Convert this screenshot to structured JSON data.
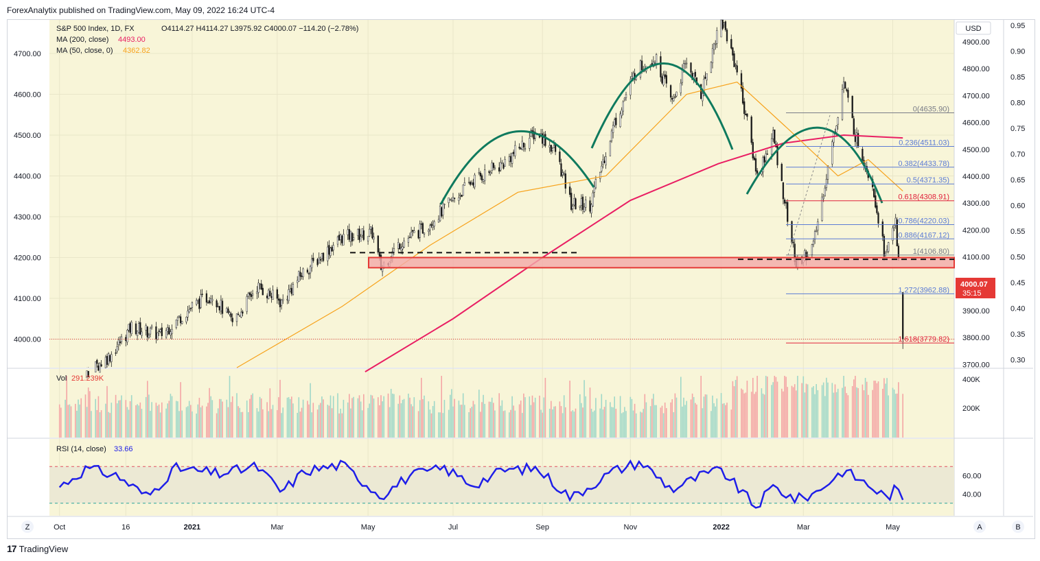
{
  "header": {
    "published": "ForexAnalytix published on TradingView.com, May 09, 2022 16:24 UTC-4"
  },
  "footer": {
    "brand": "TradingView",
    "logo": "17"
  },
  "legend": {
    "symbol": "S&P 500 Index, 1D, FX",
    "ohlc": "O4114.27  H4114.27  L3975.92  C4000.07  −114.20 (−2.78%)",
    "ma200_label": "MA (200, close)",
    "ma200_value": "4493.00",
    "ma50_label": "MA (50, close, 0)",
    "ma50_value": "4362.82",
    "vol_label": "Vol",
    "vol_value": "291.239K",
    "rsi_label": "RSI (14, close)",
    "rsi_value": "33.66"
  },
  "colors": {
    "background": "#f8f5d8",
    "ma200": "#e91e63",
    "ma50": "#f7a21b",
    "arcs": "#0f7a5e",
    "rsi": "#1e1ee8",
    "fib_blue": "#5b7bd5",
    "fib_red": "#e0203a",
    "zone_fill": "#f3a9a9",
    "zone_border": "#e53935",
    "price_tag": "#e53935"
  },
  "price_tag": {
    "value": "4000.07",
    "countdown": "35:15"
  },
  "currency_button": "USD",
  "scale_buttons": {
    "left": "Z",
    "auto": "A",
    "log": "B"
  },
  "chart_data": {
    "type": "candlestick",
    "symbol": "S&P 500 Index",
    "interval": "1D",
    "left_axis": {
      "ticks": [
        "4700.00",
        "4600.00",
        "4500.00",
        "4400.00",
        "4300.00",
        "4200.00",
        "4100.00",
        "4000.00"
      ]
    },
    "right_axis_price": {
      "ticks": [
        "4900.00",
        "4800.00",
        "4700.00",
        "4600.00",
        "4500.00",
        "4400.00",
        "4300.00",
        "4200.00",
        "4100.00",
        "4000.00",
        "3900.00",
        "3800.00",
        "3700.00"
      ]
    },
    "right_axis_ratio": {
      "ticks": [
        "0.95",
        "0.90",
        "0.85",
        "0.80",
        "0.75",
        "0.70",
        "0.65",
        "0.60",
        "0.55",
        "0.50",
        "0.45",
        "0.40",
        "0.35",
        "0.30"
      ]
    },
    "x_axis": {
      "ticks": [
        "Oct",
        "16",
        "2021",
        "Mar",
        "May",
        "Jul",
        "Sep",
        "Nov",
        "2022",
        "Mar",
        "May"
      ]
    },
    "price_path": [
      [
        "2020-10-01",
        3880
      ],
      [
        "2020-10-15",
        3900
      ],
      [
        "2020-11-05",
        3960
      ],
      [
        "2020-11-20",
        4030
      ],
      [
        "2020-12-10",
        4010
      ],
      [
        "2021-01-01",
        4080
      ],
      [
        "2021-01-15",
        4110
      ],
      [
        "2021-01-29",
        4040
      ],
      [
        "2021-02-15",
        4130
      ],
      [
        "2021-03-04",
        4090
      ],
      [
        "2021-03-18",
        4160
      ],
      [
        "2021-04-15",
        4250
      ],
      [
        "2021-05-06",
        4260
      ],
      [
        "2021-05-12",
        4175
      ],
      [
        "2021-05-25",
        4235
      ],
      [
        "2021-06-10",
        4270
      ],
      [
        "2021-06-25",
        4320
      ],
      [
        "2021-07-15",
        4390
      ],
      [
        "2021-08-05",
        4430
      ],
      [
        "2021-08-28",
        4510
      ],
      [
        "2021-09-10",
        4460
      ],
      [
        "2021-09-21",
        4330
      ],
      [
        "2021-10-04",
        4330
      ],
      [
        "2021-10-21",
        4530
      ],
      [
        "2021-11-05",
        4660
      ],
      [
        "2021-11-18",
        4690
      ],
      [
        "2021-11-30",
        4580
      ],
      [
        "2021-12-10",
        4680
      ],
      [
        "2021-12-20",
        4600
      ],
      [
        "2022-01-03",
        4790
      ],
      [
        "2022-01-14",
        4660
      ],
      [
        "2022-01-28",
        4400
      ],
      [
        "2022-02-08",
        4500
      ],
      [
        "2022-02-24",
        4180
      ],
      [
        "2022-03-08",
        4230
      ],
      [
        "2022-03-29",
        4630
      ],
      [
        "2022-04-06",
        4500
      ],
      [
        "2022-04-18",
        4380
      ],
      [
        "2022-04-27",
        4200
      ],
      [
        "2022-05-04",
        4300
      ],
      [
        "2022-05-09",
        4000.07
      ]
    ],
    "series": [
      {
        "name": "MA (200, close)",
        "points": [
          [
            "2021-05-01",
            3920
          ],
          [
            "2021-07-01",
            4050
          ],
          [
            "2021-09-01",
            4200
          ],
          [
            "2021-11-01",
            4340
          ],
          [
            "2022-01-01",
            4430
          ],
          [
            "2022-02-15",
            4480
          ],
          [
            "2022-03-29",
            4500
          ],
          [
            "2022-05-09",
            4493
          ]
        ]
      },
      {
        "name": "MA (50, close, 0)",
        "points": [
          [
            "2021-02-01",
            3930
          ],
          [
            "2021-04-15",
            4080
          ],
          [
            "2021-06-15",
            4230
          ],
          [
            "2021-08-15",
            4360
          ],
          [
            "2021-10-15",
            4400
          ],
          [
            "2021-12-10",
            4600
          ],
          [
            "2022-01-14",
            4630
          ],
          [
            "2022-02-20",
            4510
          ],
          [
            "2022-03-25",
            4400
          ],
          [
            "2022-04-15",
            4440
          ],
          [
            "2022-05-09",
            4363
          ]
        ]
      }
    ],
    "fibonacci": {
      "levels": [
        {
          "label": "0(4635.90)",
          "value": 4635.9,
          "ratio": 0
        },
        {
          "label": "0.236(4511.03)",
          "value": 4511.03,
          "ratio": 0.236
        },
        {
          "label": "0.382(4433.78)",
          "value": 4433.78,
          "ratio": 0.382
        },
        {
          "label": "0.5(4371.35)",
          "value": 4371.35,
          "ratio": 0.5
        },
        {
          "label": "0.618(4308.91)",
          "value": 4308.91,
          "ratio": 0.618
        },
        {
          "label": "0.786(4220.03)",
          "value": 4220.03,
          "ratio": 0.786
        },
        {
          "label": "0.886(4167.12)",
          "value": 4167.12,
          "ratio": 0.886
        },
        {
          "label": "1(4106.80)",
          "value": 4106.8,
          "ratio": 1
        },
        {
          "label": "1.272(3962.88)",
          "value": 3962.88,
          "ratio": 1.272
        },
        {
          "label": "1.618(3779.82)",
          "value": 3779.82,
          "ratio": 1.618
        }
      ]
    },
    "support_zone": {
      "low": 4175,
      "high": 4200
    },
    "neckline_levels": [
      4212,
      4204
    ],
    "last_price": 4000.07,
    "volume": {
      "ticks": [
        "400K",
        "200K"
      ],
      "last": "291.239K"
    },
    "rsi": {
      "ticks": [
        "60.00",
        "40.00"
      ],
      "upper_band": 70,
      "lower_band": 30,
      "last": 33.66,
      "path": [
        [
          "2020-10-01",
          48
        ],
        [
          "2020-10-20",
          68
        ],
        [
          "2020-11-10",
          60
        ],
        [
          "2020-12-01",
          37
        ],
        [
          "2020-12-20",
          68
        ],
        [
          "2021-01-20",
          62
        ],
        [
          "2021-02-15",
          70
        ],
        [
          "2021-03-04",
          42
        ],
        [
          "2021-03-20",
          65
        ],
        [
          "2021-04-15",
          72
        ],
        [
          "2021-05-12",
          38
        ],
        [
          "2021-06-01",
          60
        ],
        [
          "2021-06-25",
          68
        ],
        [
          "2021-07-15",
          50
        ],
        [
          "2021-08-05",
          66
        ],
        [
          "2021-08-28",
          68
        ],
        [
          "2021-09-21",
          36
        ],
        [
          "2021-10-20",
          65
        ],
        [
          "2021-11-08",
          75
        ],
        [
          "2021-11-30",
          45
        ],
        [
          "2021-12-20",
          60
        ],
        [
          "2022-01-03",
          66
        ],
        [
          "2022-01-27",
          26
        ],
        [
          "2022-02-08",
          48
        ],
        [
          "2022-02-24",
          34
        ],
        [
          "2022-03-08",
          40
        ],
        [
          "2022-03-29",
          66
        ],
        [
          "2022-04-15",
          50
        ],
        [
          "2022-04-28",
          36
        ],
        [
          "2022-05-04",
          46
        ],
        [
          "2022-05-09",
          33.66
        ]
      ]
    }
  }
}
